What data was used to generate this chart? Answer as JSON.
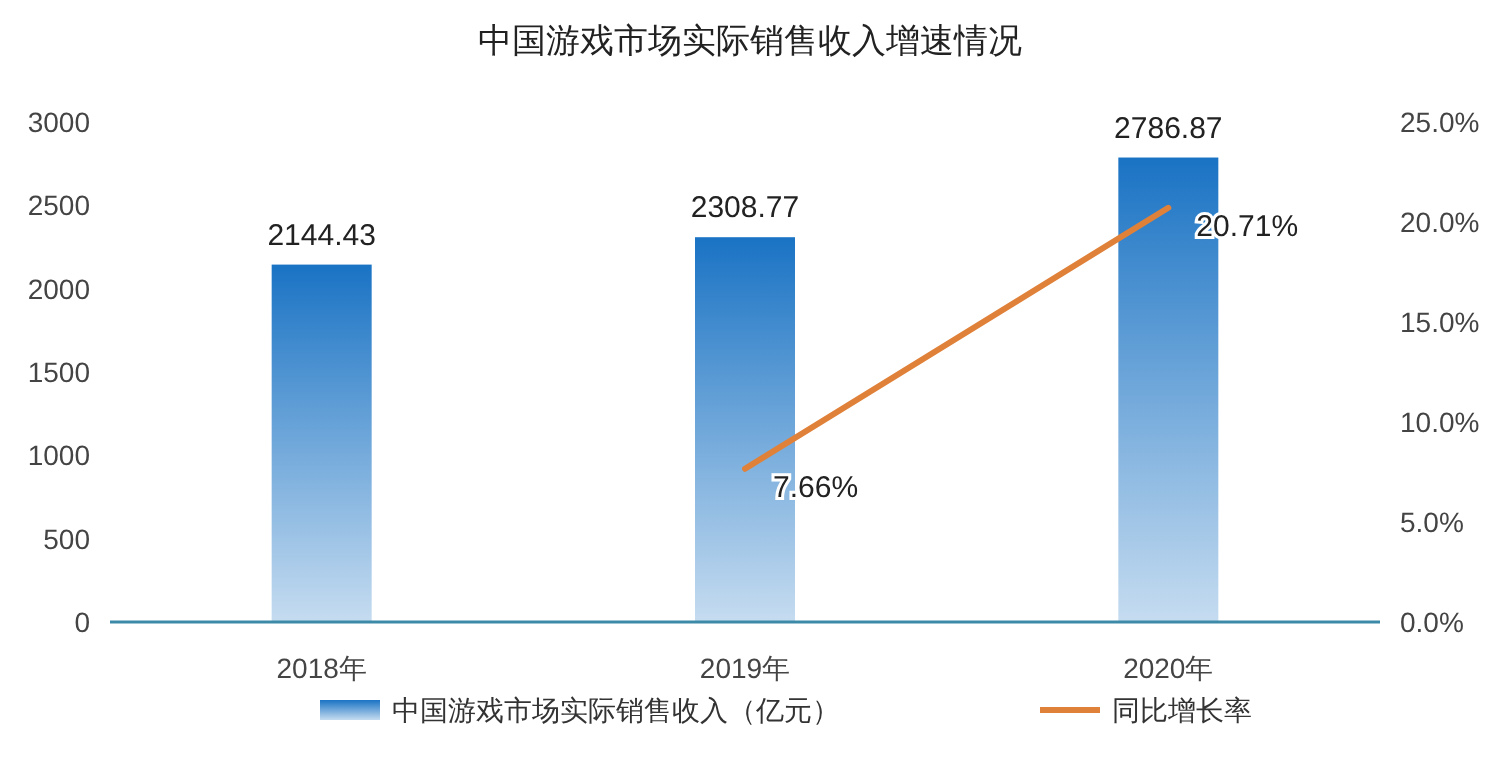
{
  "chart_data": {
    "type": "bar",
    "title": "中国游戏市场实际销售收入增速情况",
    "categories": [
      "2018年",
      "2019年",
      "2020年"
    ],
    "series": [
      {
        "name": "中国游戏市场实际销售收入（亿元）",
        "color": "#1a73c4",
        "values": [
          2144.43,
          2308.77,
          2786.87
        ],
        "value_labels": [
          "2144.43",
          "2308.77",
          "2786.87"
        ]
      },
      {
        "name": "同比增长率",
        "type": "line",
        "axis": "y2",
        "color": "#e0813a",
        "values": [
          null,
          7.66,
          20.71
        ],
        "value_labels": [
          null,
          "7.66%",
          "20.71%"
        ]
      }
    ],
    "ylim": [
      0,
      3000
    ],
    "yticks": [
      0,
      500,
      1000,
      1500,
      2000,
      2500,
      3000
    ],
    "y2lim": [
      0,
      25
    ],
    "y2ticks": [
      {
        "value": 0,
        "label": "0.0%"
      },
      {
        "value": 5,
        "label": "5.0%"
      },
      {
        "value": 10,
        "label": "10.0%"
      },
      {
        "value": 15,
        "label": "15.0%"
      },
      {
        "value": 20,
        "label": "20.0%"
      },
      {
        "value": 25,
        "label": "25.0%"
      }
    ],
    "legend": "bottom"
  }
}
